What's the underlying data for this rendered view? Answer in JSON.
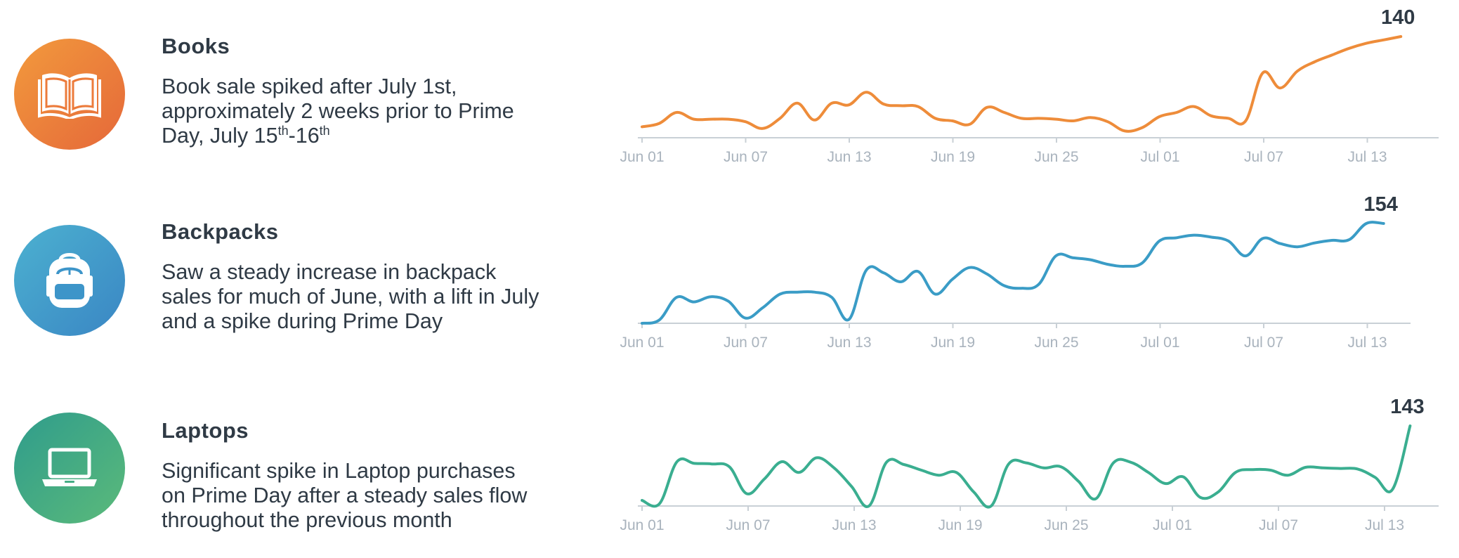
{
  "rows": [
    {
      "key": "books",
      "title": "Books",
      "icon": "book-icon",
      "colors": {
        "circle_start": "#f29a3c",
        "circle_end": "#e5683a",
        "line": "#ee8c3a"
      },
      "desc_lines": [
        {
          "text": "Book sale spiked after July 1st,"
        },
        {
          "text": "approximately 2 weeks prior to Prime"
        },
        {
          "text": "Day, July 15",
          "sup1": "th",
          "mid": "-16",
          "sup2": "th"
        }
      ]
    },
    {
      "key": "backpacks",
      "title": "Backpacks",
      "icon": "backpack-icon",
      "colors": {
        "circle_start": "#4cb1d0",
        "circle_end": "#3a86c4",
        "line": "#3a9cc6"
      },
      "desc_lines": [
        {
          "text": "Saw a steady increase in backpack"
        },
        {
          "text": "sales for much of June, with a lift in July"
        },
        {
          "text": "and a spike during Prime Day"
        }
      ]
    },
    {
      "key": "laptops",
      "title": "Laptops",
      "icon": "laptop-icon",
      "colors": {
        "circle_start": "#2f9c8c",
        "circle_end": "#5bba7a",
        "line": "#3aae90"
      },
      "desc_lines": [
        {
          "text": "Significant spike in Laptop purchases"
        },
        {
          "text": "on Prime Day after a steady sales flow"
        },
        {
          "text": "throughout the previous month"
        }
      ]
    }
  ],
  "chart_data": [
    {
      "type": "line",
      "series_key": "books",
      "x_ticks": [
        "Jun 01",
        "Jun 07",
        "Jun 13",
        "Jun 19",
        "Jun 25",
        "Jul 01",
        "Jul 07",
        "Jul 13"
      ],
      "x": [
        "Jun 01",
        "Jun 02",
        "Jun 03",
        "Jun 04",
        "Jun 05",
        "Jun 06",
        "Jun 07",
        "Jun 08",
        "Jun 09",
        "Jun 10",
        "Jun 11",
        "Jun 12",
        "Jun 13",
        "Jun 14",
        "Jun 15",
        "Jun 16",
        "Jun 17",
        "Jun 18",
        "Jun 19",
        "Jun 20",
        "Jun 21",
        "Jun 22",
        "Jun 23",
        "Jun 24",
        "Jun 25",
        "Jun 26",
        "Jun 27",
        "Jun 28",
        "Jun 29",
        "Jun 30",
        "Jul 01",
        "Jul 02",
        "Jul 03",
        "Jul 04",
        "Jul 05",
        "Jul 06",
        "Jul 07",
        "Jul 08",
        "Jul 09",
        "Jul 10",
        "Jul 11",
        "Jul 12",
        "Jul 13",
        "Jul 14",
        "Jul 15"
      ],
      "values": [
        33,
        37,
        50,
        42,
        42,
        42,
        39,
        31,
        43,
        61,
        41,
        61,
        59,
        74,
        60,
        58,
        57,
        43,
        40,
        36,
        56,
        50,
        43,
        43,
        42,
        40,
        44,
        39,
        28,
        32,
        45,
        50,
        57,
        46,
        43,
        40,
        97,
        79,
        99,
        110,
        118,
        126,
        132,
        136,
        140
      ],
      "ylim": [
        20,
        140
      ],
      "peak_label": "140",
      "peak_index": 44
    },
    {
      "type": "line",
      "series_key": "backpacks",
      "x_ticks": [
        "Jun 01",
        "Jun 07",
        "Jun 13",
        "Jun 19",
        "Jun 25",
        "Jul 01",
        "Jul 07",
        "Jul 13"
      ],
      "x": [
        "Jun 01",
        "Jun 02",
        "Jun 03",
        "Jun 04",
        "Jun 05",
        "Jun 06",
        "Jun 07",
        "Jun 08",
        "Jun 09",
        "Jun 10",
        "Jun 11",
        "Jun 12",
        "Jun 13",
        "Jun 14",
        "Jun 15",
        "Jun 16",
        "Jun 17",
        "Jun 18",
        "Jun 19",
        "Jun 20",
        "Jun 21",
        "Jun 22",
        "Jun 23",
        "Jun 24",
        "Jun 25",
        "Jun 26",
        "Jun 27",
        "Jun 28",
        "Jun 29",
        "Jun 30",
        "Jul 01",
        "Jul 02",
        "Jul 03",
        "Jul 04",
        "Jul 05",
        "Jul 06",
        "Jul 07",
        "Jul 08",
        "Jul 09",
        "Jul 10",
        "Jul 11",
        "Jul 12",
        "Jul 13",
        "Jul 14"
      ],
      "values": [
        0,
        5,
        40,
        33,
        41,
        34,
        8,
        24,
        45,
        48,
        48,
        40,
        6,
        82,
        78,
        64,
        80,
        45,
        68,
        86,
        76,
        58,
        54,
        60,
        104,
        101,
        98,
        91,
        88,
        93,
        127,
        132,
        136,
        133,
        127,
        104,
        131,
        123,
        118,
        124,
        128,
        129,
        154,
        154
      ],
      "ylim": [
        0,
        154
      ],
      "peak_label": "154",
      "peak_index": 43
    },
    {
      "type": "line",
      "series_key": "laptops",
      "x_ticks": [
        "Jun 01",
        "Jun 07",
        "Jun 13",
        "Jun 19",
        "Jun 25",
        "Jul 01",
        "Jul 07",
        "Jul 13"
      ],
      "x": [
        "Jun 01",
        "Jun 02",
        "Jun 03",
        "Jun 04",
        "Jun 05",
        "Jun 06",
        "Jun 07",
        "Jun 08",
        "Jun 09",
        "Jun 10",
        "Jun 11",
        "Jun 12",
        "Jun 13",
        "Jun 14",
        "Jun 15",
        "Jun 16",
        "Jun 17",
        "Jun 18",
        "Jun 19",
        "Jun 20",
        "Jun 21",
        "Jun 22",
        "Jun 23",
        "Jun 24",
        "Jun 25",
        "Jun 26",
        "Jun 27",
        "Jun 28",
        "Jun 29",
        "Jun 30",
        "Jul 01",
        "Jul 02",
        "Jul 03",
        "Jul 04",
        "Jul 05",
        "Jul 06",
        "Jul 07",
        "Jul 08",
        "Jul 09",
        "Jul 10",
        "Jul 11",
        "Jul 12",
        "Jul 13",
        "Jul 14",
        "Jul 15"
      ],
      "values": [
        10,
        4,
        79,
        76,
        75,
        70,
        22,
        48,
        79,
        60,
        86,
        68,
        35,
        0,
        78,
        74,
        64,
        55,
        60,
        25,
        0,
        75,
        77,
        68,
        70,
        44,
        13,
        77,
        78,
        60,
        40,
        52,
        15,
        25,
        60,
        65,
        64,
        55,
        69,
        68,
        67,
        66,
        51,
        30,
        143
      ],
      "ylim": [
        0,
        143
      ],
      "peak_label": "143",
      "peak_index": 44
    }
  ]
}
